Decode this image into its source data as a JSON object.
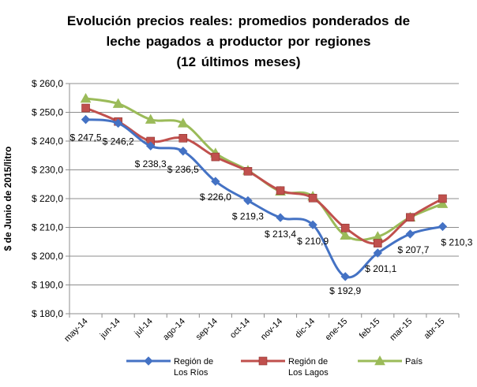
{
  "chart_data": {
    "type": "line",
    "title_lines": [
      "Evolución precios reales: promedios ponderados de",
      "leche pagados a productor por regiones",
      "(12 últimos meses)"
    ],
    "ylabel": "$ de Junio de 2015/litro",
    "ylim": [
      180,
      260
    ],
    "yticks": [
      180,
      190,
      200,
      210,
      220,
      230,
      240,
      250,
      260
    ],
    "ytick_labels": [
      "$ 180,0",
      "$ 190,0",
      "$ 200,0",
      "$ 210,0",
      "$ 220,0",
      "$ 230,0",
      "$ 240,0",
      "$ 250,0",
      "$ 260,0"
    ],
    "grid": true,
    "legend_position": "bottom",
    "categories": [
      "may-14",
      "jun-14",
      "jul-14",
      "ago-14",
      "sep-14",
      "oct-14",
      "nov-14",
      "dic-14",
      "ene-15",
      "feb-15",
      "mar-15",
      "abr-15"
    ],
    "series": [
      {
        "name_lines": [
          "Región de",
          "Los Ríos"
        ],
        "color": "#4472c4",
        "marker": "diamond",
        "values": [
          247.5,
          246.2,
          238.3,
          236.5,
          226.0,
          219.3,
          213.4,
          210.9,
          192.9,
          201.1,
          207.7,
          210.3
        ],
        "data_labels": [
          "$ 247,5",
          "$ 246,2",
          "$ 238,3",
          "$ 236,5",
          "$ 226,0",
          "$ 219,3",
          "$ 213,4",
          "$ 210,9",
          "$ 192,9",
          "$ 201,1",
          "$ 207,7",
          "$ 210,3"
        ]
      },
      {
        "name_lines": [
          "Región de",
          "Los Lagos"
        ],
        "color": "#c0504d",
        "marker": "square",
        "values": [
          251.5,
          246.8,
          240.0,
          241.0,
          234.5,
          229.5,
          222.8,
          220.2,
          209.8,
          204.5,
          213.5,
          220.0
        ]
      },
      {
        "name_lines": [
          "País"
        ],
        "color": "#9bbb59",
        "marker": "triangle",
        "values": [
          254.8,
          253.0,
          247.5,
          246.2,
          235.8,
          229.8,
          222.5,
          220.8,
          207.2,
          206.8,
          213.5,
          218.2
        ]
      }
    ]
  }
}
